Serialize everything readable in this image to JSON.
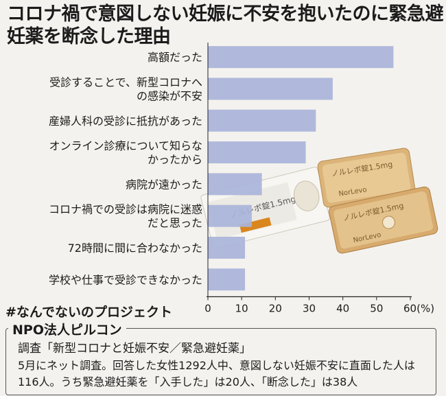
{
  "chart_data": {
    "type": "bar",
    "orientation": "horizontal",
    "title": "コロナ禍で意図しない妊娠に不安を抱いたのに緊急避妊薬を断念した理由",
    "categories": [
      [
        "高額だった"
      ],
      [
        "受診することで、新型コロナへ",
        "の感染が不安"
      ],
      [
        "産婦人科の受診に抵抗があった"
      ],
      [
        "オンライン診療について知らな",
        "かったから"
      ],
      [
        "病院が遠かった"
      ],
      [
        "コロナ禍での受診は病院に迷惑",
        "だと思った"
      ],
      [
        "72時間に間に合わなかった"
      ],
      [
        "学校や仕事で受診できなかった"
      ]
    ],
    "values": [
      55,
      37,
      32,
      29,
      16,
      13,
      11,
      11
    ],
    "xlim": [
      0,
      60
    ],
    "ticks": [
      "0",
      "10",
      "20",
      "30",
      "40",
      "50",
      "60(%)"
    ],
    "grid": false,
    "bar_color": "#a9b4da"
  },
  "footer": {
    "project": "#なんでないのプロジェクト",
    "org": "NPO法人ピルコン",
    "survey": "調査「新型コロナと妊娠不安／緊急避妊薬」",
    "description": "5月にネット調査。回答した女性1292人中、意図しない妊娠不安に直面した人は116人。うち緊急避妊薬を「入手した」は20人、「断念した」は38人"
  },
  "photo": {
    "package_text": "ノルレボ錠1.5mg",
    "brand_text": "NorLevo"
  }
}
